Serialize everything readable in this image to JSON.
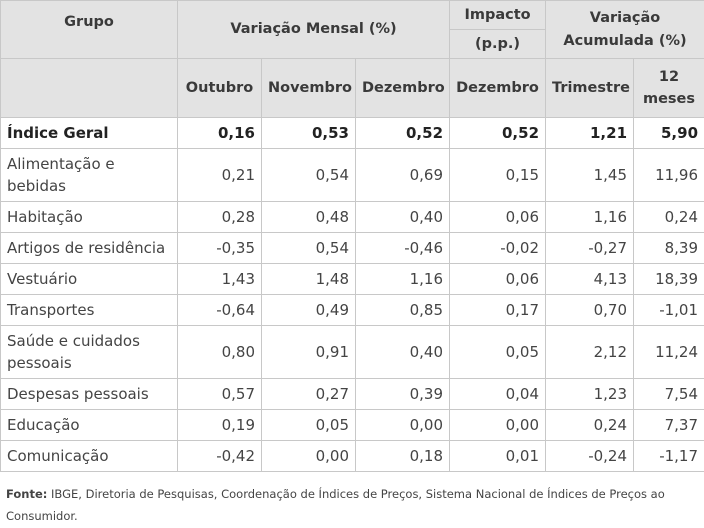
{
  "table": {
    "header": {
      "grupo": "Grupo",
      "variacao_mensal": "Variação Mensal (%)",
      "impacto_title": "Impacto",
      "impacto_unit": "(p.p.)",
      "variacao_acumulada": "Variação Acumulada (%)",
      "outubro": "Outubro",
      "novembro": "Novembro",
      "dezembro": "Dezembro",
      "impacto_dezembro": "Dezembro",
      "trimestre": "Trimestre",
      "doze_meses": "12 meses"
    },
    "rows": [
      {
        "grupo": "Índice Geral",
        "outubro": "0,16",
        "novembro": "0,53",
        "dezembro": "0,52",
        "impacto": "0,52",
        "trimestre": "1,21",
        "doze_meses": "5,90"
      },
      {
        "grupo": "Alimentação e bebidas",
        "outubro": "0,21",
        "novembro": "0,54",
        "dezembro": "0,69",
        "impacto": "0,15",
        "trimestre": "1,45",
        "doze_meses": "11,96"
      },
      {
        "grupo": "Habitação",
        "outubro": "0,28",
        "novembro": "0,48",
        "dezembro": "0,40",
        "impacto": "0,06",
        "trimestre": "1,16",
        "doze_meses": "0,24"
      },
      {
        "grupo": "Artigos de residência",
        "outubro": "-0,35",
        "novembro": "0,54",
        "dezembro": "-0,46",
        "impacto": "-0,02",
        "trimestre": "-0,27",
        "doze_meses": "8,39"
      },
      {
        "grupo": "Vestuário",
        "outubro": "1,43",
        "novembro": "1,48",
        "dezembro": "1,16",
        "impacto": "0,06",
        "trimestre": "4,13",
        "doze_meses": "18,39"
      },
      {
        "grupo": "Transportes",
        "outubro": "-0,64",
        "novembro": "0,49",
        "dezembro": "0,85",
        "impacto": "0,17",
        "trimestre": "0,70",
        "doze_meses": "-1,01"
      },
      {
        "grupo": "Saúde e cuidados pessoais",
        "outubro": "0,80",
        "novembro": "0,91",
        "dezembro": "0,40",
        "impacto": "0,05",
        "trimestre": "2,12",
        "doze_meses": "11,24"
      },
      {
        "grupo": "Despesas pessoais",
        "outubro": "0,57",
        "novembro": "0,27",
        "dezembro": "0,39",
        "impacto": "0,04",
        "trimestre": "1,23",
        "doze_meses": "7,54"
      },
      {
        "grupo": "Educação",
        "outubro": "0,19",
        "novembro": "0,05",
        "dezembro": "0,00",
        "impacto": "0,00",
        "trimestre": "0,24",
        "doze_meses": "7,37"
      },
      {
        "grupo": "Comunicação",
        "outubro": "-0,42",
        "novembro": "0,00",
        "dezembro": "0,18",
        "impacto": "0,01",
        "trimestre": "-0,24",
        "doze_meses": "-1,17"
      }
    ]
  },
  "source": {
    "label": "Fonte:",
    "text": " IBGE, Diretoria de Pesquisas, Coordenação de Índices de Preços, Sistema Nacional de Índices de Preços ao Consumidor."
  }
}
